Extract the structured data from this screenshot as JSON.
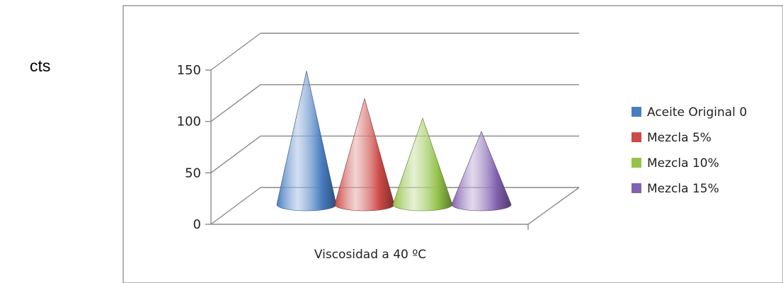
{
  "side_text": "cts",
  "chart_data": {
    "type": "bar",
    "shape": "cone-3d",
    "categories": [
      "Viscosidad a 40 ºC"
    ],
    "series": [
      {
        "name": "Aceite Original 0",
        "values": [
          130
        ],
        "color": "#4a7ec2"
      },
      {
        "name": "Mezcla 5%",
        "values": [
          103
        ],
        "color": "#cc4a47"
      },
      {
        "name": "Mezcla 10%",
        "values": [
          84
        ],
        "color": "#95c34a"
      },
      {
        "name": "Mezcla 15%",
        "values": [
          71
        ],
        "color": "#8262b0"
      }
    ],
    "yticks": [
      "0",
      "50",
      "100",
      "150"
    ],
    "ylim": [
      0,
      150
    ],
    "grid": true,
    "legend": "right"
  }
}
